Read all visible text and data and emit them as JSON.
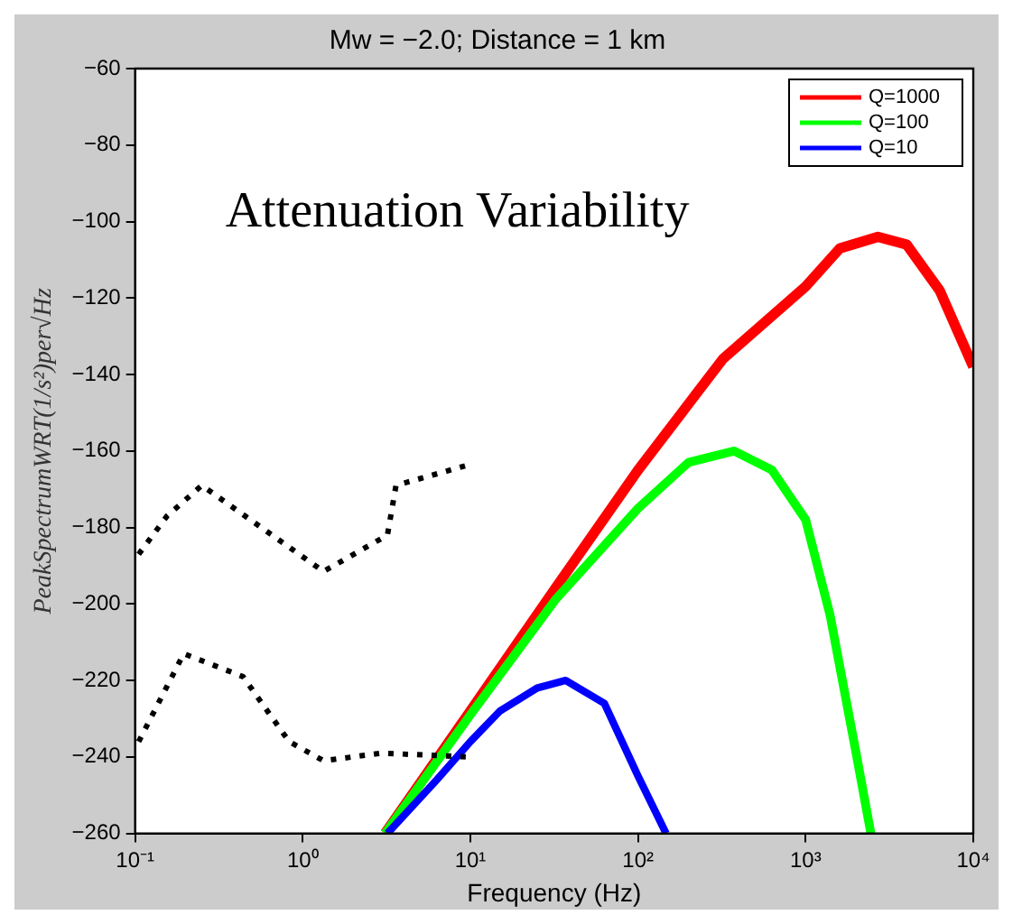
{
  "chart_data": {
    "type": "line",
    "title": "Mw = −2.0; Distance = 1 km",
    "xlabel": "Frequency (Hz)",
    "ylabel": "PeakSpectrumWRT(1/s²)per√Hz",
    "annotations": [
      "Attenuation Variability"
    ],
    "log": "x",
    "xlim": [
      0.1,
      10000
    ],
    "xticks": [
      {
        "value": 0.1,
        "label": "10⁻¹"
      },
      {
        "value": 1,
        "label": "10⁰"
      },
      {
        "value": 10,
        "label": "10¹"
      },
      {
        "value": 100,
        "label": "10²"
      },
      {
        "value": 1000,
        "label": "10³"
      },
      {
        "value": 10000,
        "label": "10⁴"
      }
    ],
    "ylim": [
      -260,
      -60
    ],
    "yticks": [
      -260,
      -240,
      -220,
      -200,
      -180,
      -160,
      -140,
      -120,
      -100,
      -80,
      -60
    ],
    "grid": false,
    "legend": "top right",
    "series": [
      {
        "name": "Q=1000",
        "color": "#ff0000",
        "x": [
          3.1,
          10,
          32,
          100,
          320,
          1000,
          1600,
          2700,
          4000,
          6300,
          10000
        ],
        "values": [
          -260,
          -228,
          -196,
          -165,
          -136,
          -117,
          -107,
          -104,
          -106,
          -118,
          -138
        ]
      },
      {
        "name": "Q=100",
        "color": "#00ff00",
        "x": [
          3.1,
          10,
          32,
          100,
          200,
          375,
          630,
          1000,
          1400,
          2000,
          2450
        ],
        "values": [
          -260,
          -229,
          -199,
          -175,
          -163,
          -160,
          -165,
          -178,
          -203,
          -239,
          -260
        ]
      },
      {
        "name": "Q=10",
        "color": "#0000ff",
        "x": [
          3.2,
          6.3,
          10,
          15,
          25,
          37,
          63,
          100,
          147
        ],
        "values": [
          -260,
          -246,
          -236,
          -228,
          -222,
          -220,
          -226,
          -245,
          -260
        ]
      },
      {
        "color": "#000000",
        "line_style": "dotted",
        "x": [
          0.105,
          0.155,
          0.25,
          1.33,
          3.2,
          3.6,
          9.8
        ],
        "values": [
          -187,
          -177,
          -169,
          -191.5,
          -182,
          -169,
          -163.6
        ]
      },
      {
        "color": "#000000",
        "line_style": "dotted",
        "x": [
          0.105,
          0.195,
          0.44,
          0.83,
          1.33,
          2.95,
          9.8
        ],
        "values": [
          -236,
          -213,
          -219,
          -236,
          -241,
          -239,
          -240
        ]
      }
    ]
  }
}
